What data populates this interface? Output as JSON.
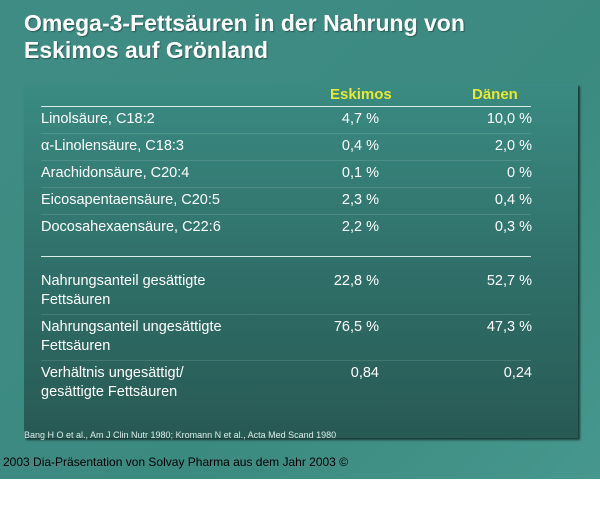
{
  "title_line1": "Omega-3-Fettsäuren in der Nahrung von",
  "title_line2": "Eskimos auf Grönland",
  "columns": [
    "Eskimos",
    "Dänen"
  ],
  "colors": {
    "header": "#e6e832",
    "background": "#3d8a80",
    "panel": "#2f6e68"
  },
  "rows": [
    {
      "label": "Linolsäure, C18:2",
      "eskimos": "4,7 %",
      "daenen": "10,0 %"
    },
    {
      "label": "α-Linolensäure, C18:3",
      "eskimos": "0,4 %",
      "daenen": "2,0 %"
    },
    {
      "label": "Arachidonsäure, C20:4",
      "eskimos": "0,1 %",
      "daenen": "0 %"
    },
    {
      "label": "Eicosapentaensäure, C20:5",
      "eskimos": "2,3 %",
      "daenen": "0,4 %"
    },
    {
      "label": "Docosahexaensäure, C22:6",
      "eskimos": "2,2 %",
      "daenen": "0,3 %"
    }
  ],
  "summary": [
    {
      "label1": "Nahrungsanteil gesättigte",
      "label2": "Fettsäuren",
      "eskimos": "22,8 %",
      "daenen": "52,7 %"
    },
    {
      "label1": "Nahrungsanteil ungesättigte",
      "label2": "Fettsäuren",
      "eskimos": "76,5 %",
      "daenen": "47,3 %"
    },
    {
      "label1": "Verhältnis ungesättigt/",
      "label2": "gesättigte Fettsäuren",
      "eskimos": "0,84",
      "daenen": "0,24"
    }
  ],
  "citation": "Bang H O et al., Am J Clin Nutr 1980; Kromann N et al., Acta Med Scand 1980",
  "footer": "2003 Dia-Präsentation von Solvay Pharma aus dem Jahr 2003 ©"
}
